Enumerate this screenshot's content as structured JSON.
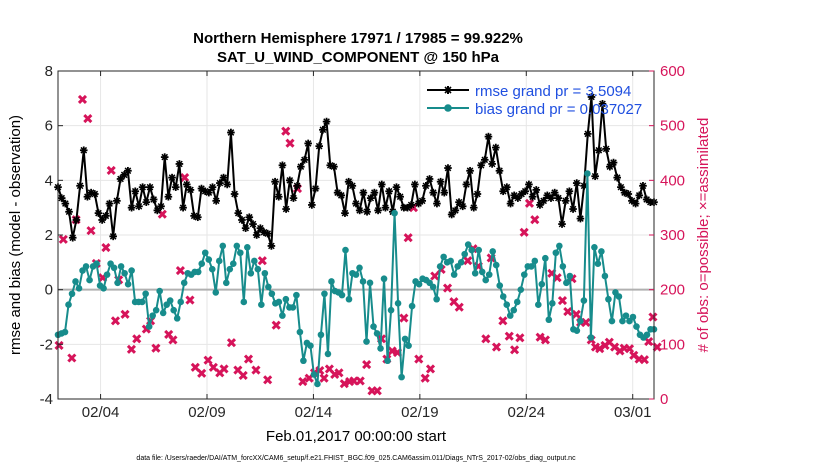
{
  "chart_data": {
    "type": "line",
    "title_line1": "Northern Hemisphere 17971 / 17985 = 99.922%",
    "title_line2": "SAT_U_WIND_COMPONENT @ 150 hPa",
    "xlabel": "Feb.01,2017 00:00:00 start",
    "ylabel_left": "rmse and bias (model - observation)",
    "ylabel_right": "# of obs: o=possible; ×=assimilated",
    "footer": "data file: /Users/raeder/DAI/ATM_forcXX/CAM6_setup/f.e21.FHIST_BGC.f09_025.CAM6assim.011/Diags_NTrS_2017-02/obs_diag_output.nc",
    "xlim": [
      1.0,
      29.0
    ],
    "ylim_left": [
      -4,
      8
    ],
    "ylim_right": [
      0,
      600
    ],
    "x_ticks": [
      3,
      8,
      13,
      18,
      23,
      28
    ],
    "x_tick_labels": [
      "02/04",
      "02/09",
      "02/14",
      "02/19",
      "02/24",
      "03/01"
    ],
    "y_left_ticks": [
      -4,
      -2,
      0,
      2,
      4,
      6,
      8
    ],
    "y_right_ticks": [
      0,
      100,
      200,
      300,
      400,
      500,
      600
    ],
    "series": [
      {
        "name": "rmse grand pr = 3.5094",
        "label_text": "rmse grand pr = 3.5094",
        "color": "#000000",
        "marker": "star",
        "values": [
          3.75,
          3.35,
          3.15,
          2.85,
          1.9,
          2.55,
          3.8,
          5.1,
          3.4,
          3.55,
          3.5,
          2.8,
          2.55,
          2.7,
          3.15,
          1.95,
          3.25,
          4.05,
          4.2,
          4.35,
          3.0,
          3.6,
          3.05,
          3.75,
          3.2,
          3.75,
          3.3,
          2.9,
          3.05,
          4.85,
          3.4,
          4.1,
          3.75,
          4.6,
          3.0,
          3.85,
          3.65,
          2.7,
          2.65,
          3.7,
          3.6,
          3.55,
          3.75,
          3.25,
          3.9,
          4.1,
          3.85,
          5.75,
          3.5,
          2.8,
          2.55,
          2.25,
          2.65,
          2.4,
          2.0,
          2.25,
          2.1,
          2.05,
          1.6,
          3.95,
          3.4,
          4.55,
          2.95,
          4.0,
          3.35,
          3.8,
          4.5,
          4.75,
          5.35,
          3.1,
          3.7,
          5.25,
          5.85,
          6.15,
          4.55,
          4.5,
          3.55,
          3.45,
          2.8,
          3.95,
          3.8,
          3.15,
          2.9,
          3.55,
          2.85,
          3.35,
          3.55,
          2.9,
          3.85,
          3.0,
          3.6,
          2.85,
          3.75,
          3.4,
          3.0,
          3.0,
          3.1,
          3.85,
          3.15,
          3.25,
          3.8,
          4.05,
          3.55,
          3.15,
          3.95,
          3.55,
          4.45,
          2.75,
          2.9,
          3.2,
          3.05,
          3.85,
          4.35,
          3.0,
          3.5,
          4.55,
          4.75,
          5.6,
          4.6,
          5.2,
          4.35,
          3.6,
          3.75,
          3.15,
          3.45,
          3.35,
          3.5,
          3.6,
          3.85,
          3.4,
          3.65,
          3.1,
          3.25,
          3.45,
          3.35,
          3.55,
          3.35,
          2.4,
          3.25,
          3.6,
          2.95,
          3.9,
          2.6,
          3.8,
          5.7,
          7.05,
          4.15,
          5.1,
          6.8,
          5.15,
          4.5,
          4.65,
          4.1,
          3.75,
          3.55,
          3.5,
          3.25,
          3.15,
          3.45,
          3.8,
          3.3,
          3.2,
          3.2
        ]
      },
      {
        "name": "bias grand pr = 0.037027",
        "label_text": "bias grand pr = 0.037027",
        "color": "#178c8c",
        "marker": "circle",
        "values": [
          -1.65,
          -1.6,
          -1.55,
          -0.55,
          -0.15,
          0.3,
          0.05,
          0.7,
          0.85,
          0.35,
          0.85,
          0.95,
          0.15,
          0.05,
          0.55,
          0.95,
          0.8,
          0.25,
          0.85,
          0.6,
          0.2,
          0.7,
          -0.45,
          -0.45,
          -0.45,
          -0.15,
          -1.35,
          -0.95,
          -0.75,
          -0.05,
          -0.85,
          -0.55,
          -0.4,
          -0.75,
          -1.05,
          -0.45,
          0.25,
          0.6,
          0.55,
          0.65,
          0.65,
          0.95,
          1.35,
          1.1,
          0.75,
          -0.1,
          1.05,
          1.6,
          0.25,
          0.75,
          0.95,
          1.6,
          1.35,
          -0.45,
          1.55,
          0.6,
          1.05,
          0.75,
          -0.55,
          0.6,
          0.1,
          -0.15,
          -0.5,
          -0.45,
          -0.95,
          -0.35,
          -0.65,
          -0.65,
          -0.2,
          -1.55,
          -2.6,
          -1.95,
          -2.05,
          -3.1,
          -3.45,
          -1.65,
          -0.15,
          -2.35,
          0.3,
          -0.05,
          -0.1,
          -0.2,
          1.45,
          -0.35,
          0.6,
          0.55,
          0.8,
          0.3,
          -1.9,
          0.25,
          -1.35,
          -1.6,
          -2.15,
          0.4,
          -2.6,
          -0.75,
          2.8,
          -0.5,
          -3.2,
          -1.8,
          -2.05,
          -0.6,
          0.3,
          0.2,
          0.4,
          0.35,
          0.25,
          0.1,
          -0.35,
          0.85,
          1.2,
          1.0,
          1.05,
          0.55,
          0.85,
          1.0,
          1.3,
          1.65,
          1.45,
          0.6,
          1.45,
          0.65,
          0.35,
          0.55,
          1.4,
          0.9,
          0.15,
          -0.25,
          -0.55,
          -0.95,
          -0.75,
          -0.45,
          0.0,
          0.55,
          0.85,
          0.85,
          1.05,
          -0.55,
          0.2,
          1.15,
          -1.1,
          -0.5,
          1.35,
          1.6,
          0.85,
          0.25,
          0.5,
          -1.45,
          -1.5,
          -1.15,
          -0.4,
          4.25,
          -1.75,
          1.55,
          0.95,
          1.4,
          0.5,
          -0.35,
          -1.15,
          -0.1,
          -0.25,
          -1.15,
          -0.95,
          -1.15,
          -1.0,
          -1.35,
          -1.65,
          -1.75,
          -1.65,
          -1.45,
          -1.45
        ]
      }
    ],
    "assimilated_obs": [
      {
        "x": 1.05,
        "y": 98
      },
      {
        "x": 1.25,
        "y": 292
      },
      {
        "x": 1.65,
        "y": 75
      },
      {
        "x": 1.85,
        "y": 328
      },
      {
        "x": 2.15,
        "y": 548
      },
      {
        "x": 2.4,
        "y": 513
      },
      {
        "x": 2.55,
        "y": 308
      },
      {
        "x": 2.8,
        "y": 248
      },
      {
        "x": 3.1,
        "y": 222
      },
      {
        "x": 3.25,
        "y": 277
      },
      {
        "x": 3.5,
        "y": 418
      },
      {
        "x": 3.7,
        "y": 143
      },
      {
        "x": 3.85,
        "y": 218
      },
      {
        "x": 4.15,
        "y": 155
      },
      {
        "x": 4.45,
        "y": 91
      },
      {
        "x": 4.7,
        "y": 110
      },
      {
        "x": 5.15,
        "y": 128
      },
      {
        "x": 5.35,
        "y": 143
      },
      {
        "x": 5.6,
        "y": 93
      },
      {
        "x": 5.9,
        "y": 338
      },
      {
        "x": 6.2,
        "y": 118
      },
      {
        "x": 6.4,
        "y": 108
      },
      {
        "x": 6.75,
        "y": 235
      },
      {
        "x": 6.95,
        "y": 405
      },
      {
        "x": 7.2,
        "y": 181
      },
      {
        "x": 7.45,
        "y": 58
      },
      {
        "x": 7.75,
        "y": 47
      },
      {
        "x": 8.05,
        "y": 71
      },
      {
        "x": 8.3,
        "y": 58
      },
      {
        "x": 8.6,
        "y": 48
      },
      {
        "x": 8.8,
        "y": 55
      },
      {
        "x": 9.15,
        "y": 103
      },
      {
        "x": 9.45,
        "y": 53
      },
      {
        "x": 9.7,
        "y": 43
      },
      {
        "x": 9.95,
        "y": 73
      },
      {
        "x": 10.3,
        "y": 53
      },
      {
        "x": 10.6,
        "y": 253
      },
      {
        "x": 10.85,
        "y": 35
      },
      {
        "x": 11.25,
        "y": 135
      },
      {
        "x": 11.7,
        "y": 490
      },
      {
        "x": 11.9,
        "y": 468
      },
      {
        "x": 12.25,
        "y": 385
      },
      {
        "x": 12.5,
        "y": 32
      },
      {
        "x": 12.8,
        "y": 38
      },
      {
        "x": 13.05,
        "y": 48
      },
      {
        "x": 13.3,
        "y": 52
      },
      {
        "x": 13.5,
        "y": 38
      },
      {
        "x": 13.75,
        "y": 55
      },
      {
        "x": 14.0,
        "y": 45
      },
      {
        "x": 14.2,
        "y": 48
      },
      {
        "x": 14.45,
        "y": 28
      },
      {
        "x": 14.7,
        "y": 32
      },
      {
        "x": 14.9,
        "y": 33
      },
      {
        "x": 15.2,
        "y": 33
      },
      {
        "x": 15.5,
        "y": 63
      },
      {
        "x": 15.75,
        "y": 15
      },
      {
        "x": 16.0,
        "y": 15
      },
      {
        "x": 16.2,
        "y": 110
      },
      {
        "x": 16.45,
        "y": 73
      },
      {
        "x": 16.7,
        "y": 88
      },
      {
        "x": 16.95,
        "y": 85
      },
      {
        "x": 17.25,
        "y": 148
      },
      {
        "x": 17.45,
        "y": 295
      },
      {
        "x": 17.7,
        "y": 350
      },
      {
        "x": 17.95,
        "y": 73
      },
      {
        "x": 18.25,
        "y": 38
      },
      {
        "x": 18.5,
        "y": 55
      },
      {
        "x": 18.7,
        "y": 225
      },
      {
        "x": 19.0,
        "y": 237
      },
      {
        "x": 19.3,
        "y": 203
      },
      {
        "x": 19.6,
        "y": 178
      },
      {
        "x": 19.85,
        "y": 168
      },
      {
        "x": 20.25,
        "y": 253
      },
      {
        "x": 20.5,
        "y": 275
      },
      {
        "x": 20.75,
        "y": 243
      },
      {
        "x": 21.1,
        "y": 110
      },
      {
        "x": 21.35,
        "y": 258
      },
      {
        "x": 21.6,
        "y": 95
      },
      {
        "x": 21.9,
        "y": 143
      },
      {
        "x": 22.2,
        "y": 115
      },
      {
        "x": 22.45,
        "y": 90
      },
      {
        "x": 22.7,
        "y": 112
      },
      {
        "x": 22.9,
        "y": 305
      },
      {
        "x": 23.15,
        "y": 358
      },
      {
        "x": 23.4,
        "y": 328
      },
      {
        "x": 23.65,
        "y": 113
      },
      {
        "x": 23.9,
        "y": 108
      },
      {
        "x": 24.2,
        "y": 230
      },
      {
        "x": 24.45,
        "y": 222
      },
      {
        "x": 24.7,
        "y": 180
      },
      {
        "x": 24.95,
        "y": 160
      },
      {
        "x": 25.15,
        "y": 220
      },
      {
        "x": 25.35,
        "y": 155
      },
      {
        "x": 25.55,
        "y": 140
      },
      {
        "x": 25.8,
        "y": 140
      },
      {
        "x": 26.05,
        "y": 108
      },
      {
        "x": 26.25,
        "y": 95
      },
      {
        "x": 26.45,
        "y": 92
      },
      {
        "x": 26.7,
        "y": 98
      },
      {
        "x": 26.9,
        "y": 104
      },
      {
        "x": 27.15,
        "y": 95
      },
      {
        "x": 27.4,
        "y": 88
      },
      {
        "x": 27.6,
        "y": 93
      },
      {
        "x": 27.85,
        "y": 92
      },
      {
        "x": 28.05,
        "y": 80
      },
      {
        "x": 28.3,
        "y": 73
      },
      {
        "x": 28.55,
        "y": 72
      },
      {
        "x": 28.75,
        "y": 105
      },
      {
        "x": 28.95,
        "y": 150
      },
      {
        "x": 29.15,
        "y": 95
      }
    ],
    "zero_line": true,
    "legend_position": "top-right"
  }
}
